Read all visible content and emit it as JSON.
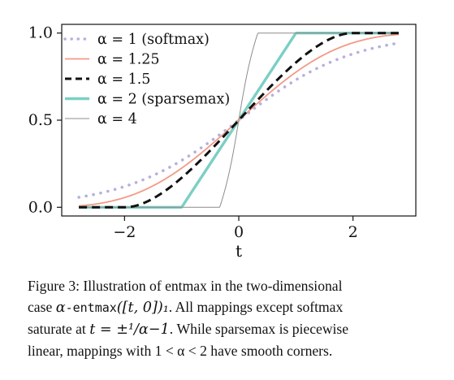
{
  "chart_data": {
    "type": "line",
    "title": "",
    "xlabel": "t",
    "ylabel": "",
    "xlim": [
      -3.1,
      3.1
    ],
    "ylim": [
      -0.05,
      1.05
    ],
    "x_ticks": [
      -2,
      0,
      2
    ],
    "x_tick_labels": [
      "−2",
      "0",
      "2"
    ],
    "y_ticks": [
      0.0,
      0.5,
      1.0
    ],
    "y_tick_labels": [
      "0.0",
      "0.5",
      "1.0"
    ],
    "grid": false,
    "legend_position": "top-left",
    "series": [
      {
        "name": "α = 1 (softmax)",
        "alpha": 1,
        "color": "#b4b1de",
        "style": "dotted",
        "x": [
          -2.8,
          -2.0,
          -1.0,
          0.0,
          1.0,
          2.0,
          2.8
        ],
        "y": [
          0.057,
          0.119,
          0.269,
          0.5,
          0.731,
          0.881,
          0.943
        ]
      },
      {
        "name": "α = 1.25",
        "alpha": 1.25,
        "color": "#f29a86",
        "style": "solid",
        "x": [
          -2.8,
          -2.0,
          -1.0,
          0.0,
          1.0,
          2.0,
          2.8
        ],
        "y": [
          0.013,
          0.058,
          0.225,
          0.5,
          0.775,
          0.942,
          0.987
        ]
      },
      {
        "name": "α = 1.5",
        "alpha": 1.5,
        "color": "#111111",
        "style": "dashed",
        "x": [
          -2.8,
          -2.0,
          -1.0,
          0.0,
          1.0,
          2.0,
          2.8
        ],
        "y": [
          0.0,
          0.0,
          0.18,
          0.5,
          0.82,
          1.0,
          1.0
        ]
      },
      {
        "name": "α = 2 (sparsemax)",
        "alpha": 2,
        "color": "#7ccfc4",
        "style": "solid",
        "x": [
          -2.8,
          -1.0,
          0.0,
          1.0,
          2.8
        ],
        "y": [
          0.0,
          0.0,
          0.5,
          1.0,
          1.0
        ]
      },
      {
        "name": "α = 4",
        "alpha": 4,
        "color": "#8c8c8c",
        "style": "solid",
        "x": [
          -2.8,
          -0.333,
          0.0,
          0.333,
          2.8
        ],
        "y": [
          0.0,
          0.0,
          0.5,
          1.0,
          1.0
        ]
      }
    ]
  },
  "caption": {
    "line1": "Figure 3:  Illustration of entmax in the two-dimensional",
    "line2_a": "case ",
    "line2_alpha": "α",
    "line2_mono": "-entmax",
    "line2_args": "([t, 0])₁",
    "line2_b": ".  All mappings except softmax",
    "line3_a": "saturate at ",
    "line3_math": "t = ±¹/α−1",
    "line3_b": ". While sparsemax is piecewise",
    "line4": "linear, mappings with 1 < α < 2 have smooth corners."
  }
}
